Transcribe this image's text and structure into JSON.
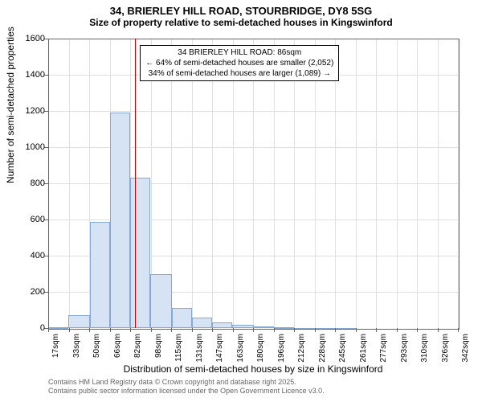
{
  "title": "34, BRIERLEY HILL ROAD, STOURBRIDGE, DY8 5SG",
  "subtitle": "Size of property relative to semi-detached houses in Kingswinford",
  "ylabel": "Number of semi-detached properties",
  "xlabel": "Distribution of semi-detached houses by size in Kingswinford",
  "footer_line1": "Contains HM Land Registry data © Crown copyright and database right 2025.",
  "footer_line2": "Contains public sector information licensed under the Open Government Licence v3.0.",
  "annotation": {
    "line1": "34 BRIERLEY HILL ROAD: 86sqm",
    "line2": "← 64% of semi-detached houses are smaller (2,052)",
    "line3": "34% of semi-detached houses are larger (1,089) →"
  },
  "chart": {
    "type": "histogram",
    "ylim": [
      0,
      1600
    ],
    "yticks": [
      0,
      200,
      400,
      600,
      800,
      1000,
      1200,
      1400,
      1600
    ],
    "xticks": [
      "17sqm",
      "33sqm",
      "50sqm",
      "66sqm",
      "82sqm",
      "98sqm",
      "115sqm",
      "131sqm",
      "147sqm",
      "163sqm",
      "180sqm",
      "196sqm",
      "212sqm",
      "228sqm",
      "245sqm",
      "261sqm",
      "277sqm",
      "293sqm",
      "310sqm",
      "326sqm",
      "342sqm"
    ],
    "x_range": [
      17,
      342
    ],
    "marker_x": 86,
    "bar_color": "#d5e3f5",
    "bar_border_color": "#87a8d4",
    "marker_color": "#cc0000",
    "grid_color": "#e0e0e0",
    "background_color": "#ffffff",
    "axis_color": "#666666",
    "title_fontsize": 13,
    "subtitle_fontsize": 12,
    "label_fontsize": 12,
    "tick_fontsize": 11,
    "bars": [
      {
        "x0": 17,
        "x1": 33,
        "value": 5
      },
      {
        "x0": 33,
        "x1": 50,
        "value": 70
      },
      {
        "x0": 50,
        "x1": 66,
        "value": 585
      },
      {
        "x0": 66,
        "x1": 82,
        "value": 1190
      },
      {
        "x0": 82,
        "x1": 98,
        "value": 830
      },
      {
        "x0": 98,
        "x1": 115,
        "value": 300
      },
      {
        "x0": 115,
        "x1": 131,
        "value": 110
      },
      {
        "x0": 131,
        "x1": 147,
        "value": 60
      },
      {
        "x0": 147,
        "x1": 163,
        "value": 30
      },
      {
        "x0": 163,
        "x1": 180,
        "value": 20
      },
      {
        "x0": 180,
        "x1": 196,
        "value": 10
      },
      {
        "x0": 196,
        "x1": 212,
        "value": 4
      },
      {
        "x0": 212,
        "x1": 228,
        "value": 2
      },
      {
        "x0": 228,
        "x1": 245,
        "value": 1
      },
      {
        "x0": 245,
        "x1": 261,
        "value": 1
      }
    ]
  }
}
